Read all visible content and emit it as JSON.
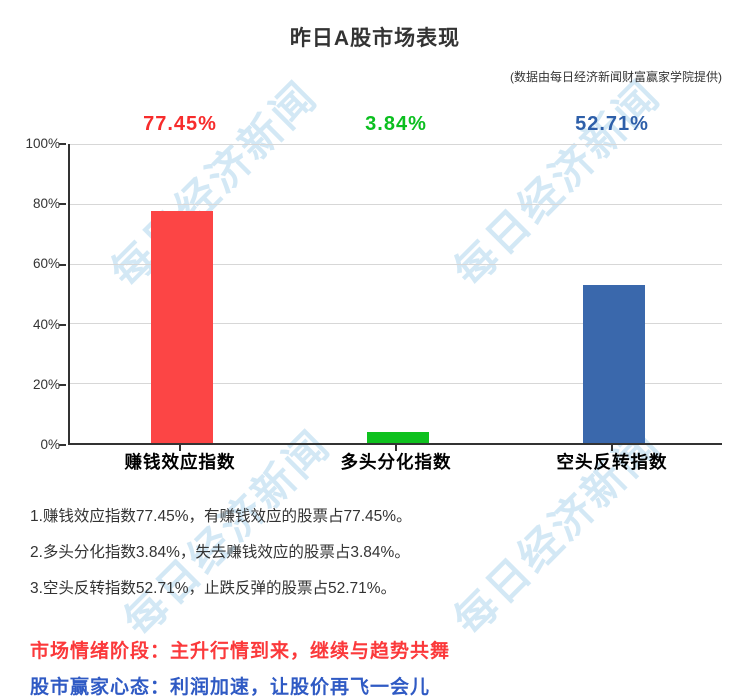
{
  "header": {
    "title": "昨日A股市场表现",
    "subtitle": "(数据由每日经济新闻财富赢家学院提供)"
  },
  "watermark": {
    "text": "每日经济新闻",
    "color": "rgba(158,203,232,0.45)"
  },
  "chart_data": {
    "type": "bar",
    "title": "昨日A股市场表现",
    "categories": [
      "赚钱效应指数",
      "多头分化指数",
      "空头反转指数"
    ],
    "values": [
      77.45,
      3.84,
      52.71
    ],
    "value_labels": [
      "77.45%",
      "3.84%",
      "52.71%"
    ],
    "bar_colors": [
      "#fc4545",
      "#0ec11e",
      "#3a68ac"
    ],
    "label_colors": [
      "#f72c2c",
      "#0bbf1f",
      "#2e5fa9"
    ],
    "y_ticks": [
      "100%",
      "80%",
      "60%",
      "40%",
      "20%",
      "0%"
    ],
    "ylim": [
      0,
      100
    ],
    "xlabel": "",
    "ylabel": "",
    "grid": "horizontal gridlines at every 20%",
    "legend": "none"
  },
  "notes": {
    "line1": "1.赚钱效应指数77.45%，有赚钱效应的股票占77.45%。",
    "line2": "2.多头分化指数3.84%，失去赚钱效应的股票占3.84%。",
    "line3": "3.空头反转指数52.71%，止跌反弹的股票占52.71%。"
  },
  "sentiment": {
    "stage_text": "市场情绪阶段：主升行情到来，继续与趋势共舞",
    "stage_color": "#fb393b",
    "mindset_text": "股市赢家心态：利润加速，让股价再飞一会儿",
    "mindset_color": "#2f5ac4"
  }
}
